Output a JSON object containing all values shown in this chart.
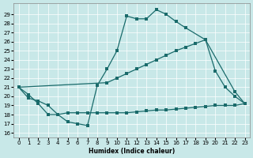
{
  "xlabel": "Humidex (Indice chaleur)",
  "xlim": [
    -0.5,
    23.5
  ],
  "ylim": [
    15.5,
    30.2
  ],
  "yticks": [
    16,
    17,
    18,
    19,
    20,
    21,
    22,
    23,
    24,
    25,
    26,
    27,
    28,
    29
  ],
  "xticks": [
    0,
    1,
    2,
    3,
    4,
    5,
    6,
    7,
    8,
    9,
    10,
    11,
    12,
    13,
    14,
    15,
    16,
    17,
    18,
    19,
    20,
    21,
    22,
    23
  ],
  "bg_color": "#c8e8e8",
  "line_color": "#1a6b6b",
  "grid_color": "#ffffff",
  "curve1_x": [
    0,
    1,
    2,
    3,
    4,
    5,
    6,
    7,
    8,
    9,
    10,
    11,
    12,
    13,
    14,
    15,
    16,
    17,
    19,
    22,
    23
  ],
  "curve1_y": [
    21.0,
    20.2,
    19.2,
    18.0,
    18.0,
    17.2,
    17.0,
    16.8,
    21.2,
    23.0,
    25.0,
    28.8,
    28.5,
    28.5,
    29.5,
    29.0,
    28.2,
    27.5,
    26.2,
    20.5,
    19.2
  ],
  "curve2_x": [
    0,
    9,
    10,
    11,
    12,
    13,
    14,
    15,
    16,
    17,
    18,
    19,
    20,
    21,
    22,
    23
  ],
  "curve2_y": [
    21.0,
    21.5,
    22.0,
    22.5,
    23.0,
    23.5,
    24.0,
    24.5,
    25.0,
    25.4,
    25.8,
    26.2,
    22.8,
    21.0,
    20.0,
    19.2
  ],
  "curve3_x": [
    0,
    1,
    2,
    3,
    4,
    5,
    6,
    7,
    8,
    9,
    10,
    11,
    12,
    13,
    14,
    15,
    16,
    17,
    18,
    19,
    20,
    21,
    22,
    23
  ],
  "curve3_y": [
    21.0,
    19.8,
    19.5,
    19.0,
    18.0,
    18.2,
    18.2,
    18.2,
    18.2,
    18.2,
    18.2,
    18.2,
    18.3,
    18.4,
    18.5,
    18.5,
    18.6,
    18.7,
    18.8,
    18.9,
    19.0,
    19.0,
    19.0,
    19.2
  ]
}
